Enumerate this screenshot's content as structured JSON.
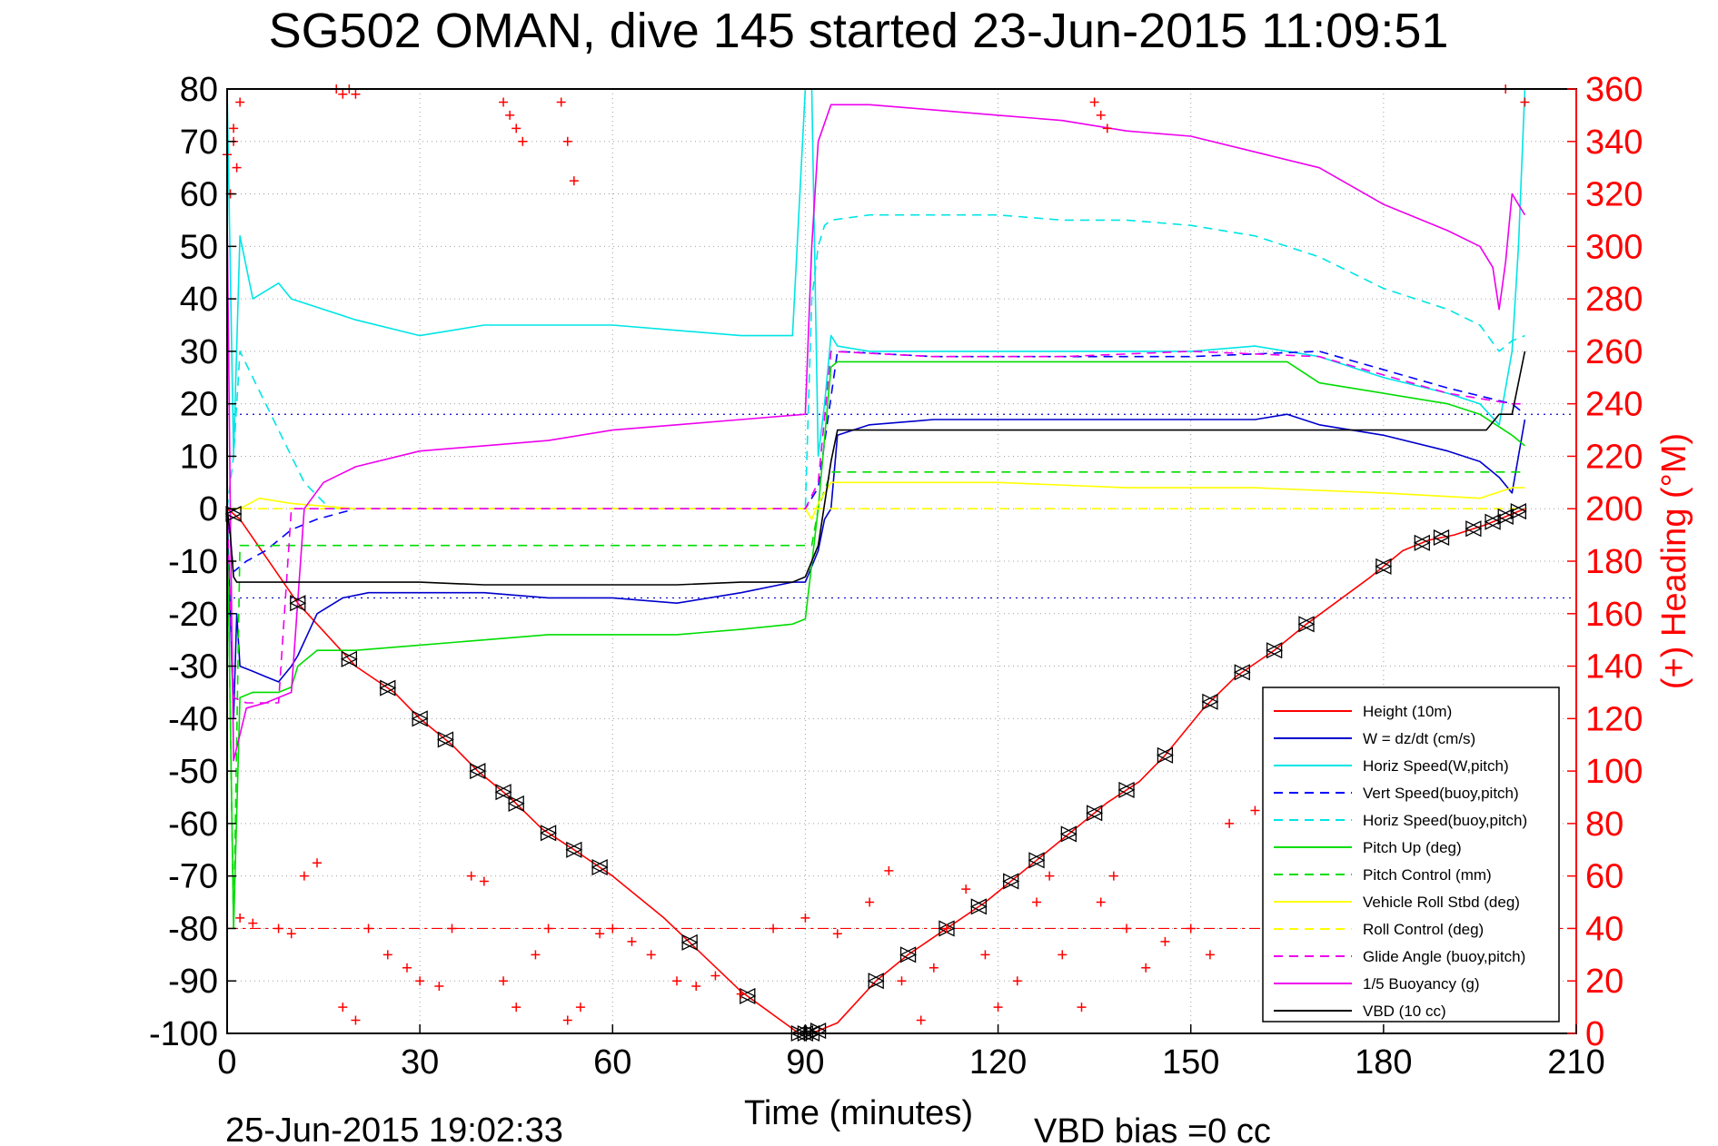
{
  "chart_data": {
    "type": "line",
    "title": "SG502 OMAN, dive 145 started 23-Jun-2015 11:09:51",
    "xlabel": "Time (minutes)",
    "ylabel_right": "(+) Heading (°M)",
    "footer_left": "25-Jun-2015 19:02:33",
    "footer_right": "VBD bias =0 cc",
    "xlim": [
      0,
      210
    ],
    "ylim_left": [
      -100,
      80
    ],
    "ylim_right": [
      0,
      360
    ],
    "xticks": [
      0,
      30,
      60,
      90,
      120,
      150,
      180,
      210
    ],
    "yticks_left": [
      80,
      70,
      60,
      50,
      40,
      30,
      20,
      10,
      0,
      -10,
      -20,
      -30,
      -40,
      -50,
      -60,
      -70,
      -80,
      -90,
      -100
    ],
    "yticks_right": [
      360,
      340,
      320,
      300,
      280,
      260,
      240,
      220,
      200,
      180,
      160,
      140,
      120,
      100,
      80,
      60,
      40,
      20,
      0
    ],
    "grid": true,
    "legend_position": "bottom-right",
    "colors": {
      "red": "#ff0000",
      "blue": "#0000cc",
      "cyan": "#00e5e5",
      "green": "#00dd00",
      "yellow": "#ffff00",
      "magenta": "#ee00ee",
      "black": "#000000"
    },
    "series": [
      {
        "name": "Height (10m)",
        "color": "#ff0000",
        "dash": "solid",
        "x": [
          0,
          1,
          2,
          11,
          20,
          26,
          30,
          35,
          39,
          44,
          49,
          54,
          60,
          68,
          80,
          89,
          91,
          93,
          95,
          101,
          106,
          112,
          118,
          123,
          128,
          133,
          137,
          142,
          146,
          152,
          157,
          163,
          168,
          178,
          183,
          187,
          191,
          196,
          200,
          202
        ],
        "y": [
          0,
          -1,
          -2,
          -18,
          -30,
          -35,
          -40,
          -45,
          -50,
          -55,
          -61,
          -65,
          -70,
          -78,
          -92,
          -100,
          -100,
          -99,
          -98,
          -90,
          -85,
          -80,
          -75,
          -70,
          -65,
          -60,
          -56,
          -52,
          -47,
          -38,
          -32,
          -27,
          -22,
          -13,
          -8,
          -6,
          -5,
          -3,
          -1,
          0
        ]
      },
      {
        "name": "W = dz/dt (cm/s)",
        "color": "#0000cc",
        "dash": "solid",
        "x": [
          0,
          0.5,
          1,
          1.5,
          2,
          4,
          6,
          8,
          10,
          11,
          14,
          18,
          22,
          30,
          40,
          50,
          60,
          70,
          80,
          88,
          90,
          92,
          93,
          94,
          95,
          100,
          110,
          120,
          130,
          140,
          150,
          160,
          165,
          170,
          180,
          190,
          195,
          198,
          200,
          202
        ],
        "y": [
          0,
          -20,
          -40,
          -20,
          -30,
          -31,
          -32,
          -33,
          -30,
          -28,
          -20,
          -17,
          -16,
          -16,
          -16,
          -17,
          -17,
          -18,
          -16,
          -14,
          -14,
          -8,
          -2,
          0,
          14,
          16,
          17,
          17,
          17,
          17,
          17,
          17,
          18,
          16,
          14,
          11,
          9,
          6,
          3,
          17
        ]
      },
      {
        "name": "Horiz Speed(W,pitch)",
        "color": "#00e5e5",
        "dash": "solid",
        "x": [
          0,
          1,
          2,
          4,
          8,
          10,
          20,
          30,
          40,
          50,
          60,
          70,
          80,
          88,
          90,
          91,
          92,
          93,
          94,
          95,
          100,
          110,
          120,
          130,
          140,
          150,
          160,
          170,
          180,
          190,
          195,
          198,
          200,
          201,
          202
        ],
        "y": [
          80,
          10,
          52,
          40,
          43,
          40,
          36,
          33,
          35,
          35,
          35,
          34,
          33,
          33,
          80,
          80,
          10,
          20,
          33,
          31,
          30,
          30,
          30,
          30,
          30,
          30,
          31,
          29,
          25,
          22,
          20,
          16,
          30,
          50,
          80
        ]
      },
      {
        "name": "Vert Speed(buoy,pitch)",
        "color": "#0000ff",
        "dash": "dash",
        "x": [
          0,
          1,
          3,
          6,
          10,
          14,
          20,
          40,
          80,
          90,
          92,
          95,
          110,
          130,
          150,
          170,
          190,
          200,
          202
        ],
        "y": [
          0,
          -12,
          -10,
          -8,
          -4,
          -2,
          0,
          0,
          0,
          0,
          4,
          30,
          29,
          29,
          29,
          30,
          23,
          20,
          18
        ]
      },
      {
        "name": "Horiz Speed(buoy,pitch)",
        "color": "#00e5e5",
        "dash": "dash",
        "x": [
          0,
          1,
          2,
          4,
          8,
          12,
          16,
          20,
          40,
          80,
          90,
          91,
          92,
          93,
          94,
          100,
          110,
          120,
          130,
          140,
          150,
          160,
          170,
          180,
          190,
          195,
          198,
          200,
          202
        ],
        "y": [
          0,
          10,
          30,
          25,
          15,
          5,
          0,
          0,
          0,
          0,
          0,
          40,
          50,
          54,
          55,
          56,
          56,
          56,
          55,
          55,
          54,
          52,
          48,
          42,
          38,
          35,
          30,
          32,
          33
        ]
      },
      {
        "name": "Pitch Up (deg)",
        "color": "#00dd00",
        "dash": "solid",
        "x": [
          0,
          1,
          2,
          4,
          8,
          10,
          11,
          14,
          20,
          30,
          40,
          50,
          60,
          70,
          80,
          88,
          90,
          92,
          94,
          95,
          100,
          110,
          120,
          130,
          140,
          150,
          160,
          165,
          170,
          180,
          190,
          195,
          200,
          202
        ],
        "y": [
          0,
          -80,
          -36,
          -35,
          -35,
          -34,
          -30,
          -27,
          -27,
          -26,
          -25,
          -24,
          -24,
          -24,
          -23,
          -22,
          -21,
          0,
          27,
          28,
          28,
          28,
          28,
          28,
          28,
          28,
          28,
          28,
          24,
          22,
          20,
          18,
          14,
          12
        ]
      },
      {
        "name": "Pitch Control (mm)",
        "color": "#00dd00",
        "dash": "dash",
        "x": [
          0,
          1,
          2,
          10,
          11,
          90,
          91,
          92,
          94,
          202
        ],
        "y": [
          0,
          -80,
          -7,
          -7,
          -7,
          -7,
          -7,
          0,
          7,
          7
        ]
      },
      {
        "name": "Vehicle Roll Stbd (deg)",
        "color": "#ffff00",
        "dash": "solid",
        "x": [
          0,
          2,
          5,
          10,
          20,
          30,
          40,
          50,
          60,
          70,
          80,
          90,
          91,
          92,
          94,
          100,
          120,
          140,
          160,
          180,
          195,
          200,
          202
        ],
        "y": [
          0,
          0,
          2,
          1,
          0,
          0,
          0,
          0,
          0,
          0,
          0,
          0,
          -2,
          1,
          5,
          5,
          5,
          4,
          4,
          3,
          2,
          4,
          4
        ]
      },
      {
        "name": "Roll Control (deg)",
        "color": "#ffff00",
        "dash": "dash",
        "x": [
          0,
          10,
          90,
          91,
          202
        ],
        "y": [
          0,
          0,
          0,
          0,
          0
        ]
      },
      {
        "name": "Glide Angle (buoy,pitch)",
        "color": "#ee00ee",
        "dash": "dash",
        "x": [
          0,
          1,
          3,
          8,
          10,
          90,
          92,
          94,
          110,
          130,
          150,
          170,
          190,
          200,
          202
        ],
        "y": [
          0,
          -36,
          -37,
          -37,
          0,
          0,
          5,
          30,
          29,
          29,
          30,
          29,
          22,
          20,
          20
        ]
      },
      {
        "name": "1/5 Buoyancy (g)",
        "color": "#ee00ee",
        "dash": "solid",
        "x": [
          0,
          0.5,
          1,
          3,
          6,
          10,
          12,
          15,
          20,
          30,
          40,
          50,
          60,
          70,
          80,
          90,
          91,
          92,
          94,
          100,
          110,
          120,
          130,
          140,
          150,
          160,
          170,
          180,
          190,
          195,
          197,
          198,
          199,
          200,
          202
        ],
        "y": [
          56,
          0,
          -48,
          -38,
          -37,
          -35,
          0,
          5,
          8,
          11,
          12,
          13,
          15,
          16,
          17,
          18,
          50,
          70,
          77,
          77,
          76,
          75,
          74,
          72,
          71,
          68,
          65,
          58,
          53,
          50,
          46,
          38,
          47,
          60,
          56
        ]
      },
      {
        "name": "VBD (10 cc)",
        "color": "#000000",
        "dash": "solid",
        "x": [
          0,
          0.5,
          1,
          1.5,
          2,
          10,
          20,
          30,
          40,
          50,
          60,
          70,
          80,
          88,
          90,
          92,
          94,
          95,
          100,
          120,
          140,
          160,
          180,
          196,
          198,
          199,
          200,
          202
        ],
        "y": [
          0,
          -5,
          -13,
          -14,
          -14,
          -14,
          -14,
          -14,
          -14.5,
          -14.5,
          -14.5,
          -14.5,
          -14,
          -14,
          -13,
          -7,
          9,
          15,
          15,
          15,
          15,
          15,
          15,
          15,
          18,
          18,
          18,
          30
        ]
      },
      {
        "name": "Heading",
        "color": "#ff0000",
        "marker": "+",
        "axis": "right",
        "x": [
          0.5,
          1,
          1.5,
          2,
          4,
          8,
          10,
          12,
          14,
          18,
          20,
          22,
          25,
          28,
          30,
          33,
          35,
          38,
          40,
          43,
          45,
          48,
          50,
          53,
          55,
          58,
          60,
          63,
          66,
          70,
          73,
          76,
          80,
          85,
          90,
          95,
          100,
          103,
          105,
          108,
          110,
          112,
          115,
          118,
          120,
          123,
          126,
          128,
          130,
          133,
          136,
          138,
          140,
          143,
          146,
          150,
          153,
          156,
          160,
          163,
          166,
          170,
          175,
          180,
          185,
          190,
          195,
          200,
          202
        ],
        "y": [
          320,
          340,
          330,
          44,
          42,
          40,
          38,
          60,
          65,
          10,
          5,
          40,
          30,
          25,
          20,
          18,
          40,
          60,
          58,
          20,
          10,
          30,
          40,
          5,
          10,
          38,
          40,
          35,
          30,
          20,
          18,
          22,
          15,
          40,
          44,
          38,
          50,
          62,
          20,
          5,
          25,
          40,
          55,
          30,
          10,
          20,
          50,
          60,
          30,
          10,
          50,
          60,
          40,
          25,
          35,
          40,
          30,
          80,
          85,
          40,
          20,
          35,
          30,
          25,
          40,
          45,
          20,
          48,
          355
        ]
      },
      {
        "name": "Heading (high)",
        "color": "#ff0000",
        "marker": "+",
        "axis": "right",
        "x": [
          0,
          1,
          2,
          17,
          18,
          19,
          20,
          43,
          44,
          45,
          46,
          52,
          53,
          54,
          135,
          136,
          137,
          199
        ],
        "y": [
          335,
          345,
          355,
          360,
          358,
          360,
          358,
          355,
          350,
          345,
          340,
          355,
          340,
          325,
          355,
          350,
          345,
          360
        ]
      }
    ],
    "legend": [
      {
        "label": "Height (10m)",
        "color": "#ff0000",
        "dash": "solid"
      },
      {
        "label": "W = dz/dt (cm/s)",
        "color": "#0000cc",
        "dash": "solid"
      },
      {
        "label": "Horiz Speed(W,pitch)",
        "color": "#00e5e5",
        "dash": "solid"
      },
      {
        "label": "Vert Speed(buoy,pitch)",
        "color": "#0000ff",
        "dash": "dash"
      },
      {
        "label": "Horiz Speed(buoy,pitch)",
        "color": "#00e5e5",
        "dash": "dash"
      },
      {
        "label": "Pitch Up (deg)",
        "color": "#00dd00",
        "dash": "solid"
      },
      {
        "label": "Pitch Control (mm)",
        "color": "#00dd00",
        "dash": "dash"
      },
      {
        "label": "Vehicle Roll Stbd (deg)",
        "color": "#ffff00",
        "dash": "solid"
      },
      {
        "label": "Roll Control (deg)",
        "color": "#ffff00",
        "dash": "dash"
      },
      {
        "label": "Glide Angle (buoy,pitch)",
        "color": "#ee00ee",
        "dash": "dash"
      },
      {
        "label": "1/5 Buoyancy (g)",
        "color": "#ee00ee",
        "dash": "solid"
      },
      {
        "label": "VBD (10 cc)",
        "color": "#000000",
        "dash": "solid"
      }
    ],
    "reference_lines": [
      {
        "axis": "right",
        "y": 40,
        "color": "#ff0000",
        "dash": "dashdot"
      },
      {
        "axis": "left",
        "y": -17,
        "color": "#0000cc",
        "dash": "dot"
      },
      {
        "axis": "left",
        "y": 18,
        "color": "#0000cc",
        "dash": "dot"
      }
    ],
    "height_markers_x": [
      1,
      11,
      19,
      25,
      30,
      34,
      39,
      43,
      45,
      50,
      54,
      58,
      72,
      81,
      89,
      90,
      91,
      92,
      101,
      106,
      112,
      117,
      122,
      126,
      131,
      135,
      140,
      146,
      153,
      158,
      163,
      168,
      180,
      186,
      189,
      194,
      197,
      199,
      201
    ]
  }
}
